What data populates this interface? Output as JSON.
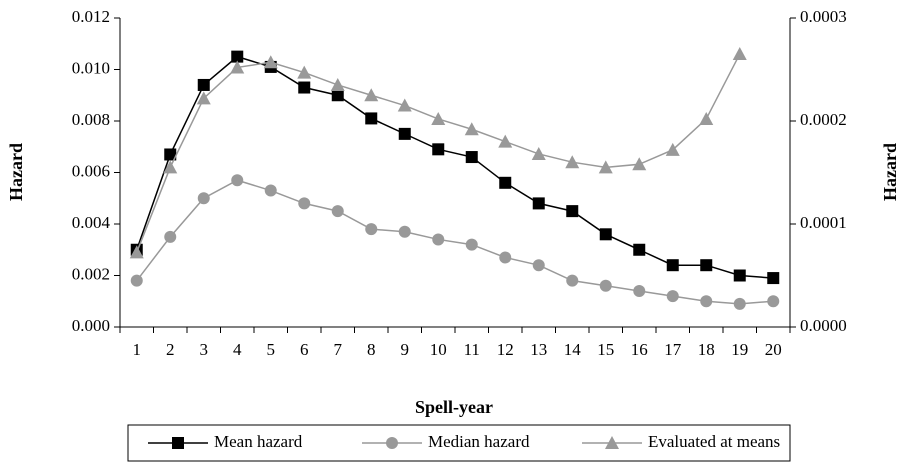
{
  "chart_data": {
    "type": "line",
    "x_label": "Spell-year",
    "y_label": "Hazard",
    "y2_label": "Hazard",
    "categories": [
      "1",
      "2",
      "3",
      "4",
      "5",
      "6",
      "7",
      "8",
      "9",
      "10",
      "11",
      "12",
      "13",
      "14",
      "15",
      "16",
      "17",
      "18",
      "19",
      "20"
    ],
    "ylim": [
      0,
      0.012
    ],
    "yticks": [
      {
        "value": 0,
        "label": "0.000"
      },
      {
        "value": 0.002,
        "label": "0.002"
      },
      {
        "value": 0.004,
        "label": "0.004"
      },
      {
        "value": 0.006,
        "label": "0.006"
      },
      {
        "value": 0.008,
        "label": "0.008"
      },
      {
        "value": 0.01,
        "label": "0.010"
      },
      {
        "value": 0.012,
        "label": "0.012"
      }
    ],
    "y2lim": [
      0,
      0.0003
    ],
    "y2ticks": [
      {
        "value": 0,
        "label": "0.0000"
      },
      {
        "value": 0.0001,
        "label": "0.0001"
      },
      {
        "value": 0.0002,
        "label": "0.0002"
      },
      {
        "value": 0.0003,
        "label": "0.0003"
      }
    ],
    "legend": "bottom",
    "series": [
      {
        "name": "Mean hazard",
        "color": "#000000",
        "marker": "square",
        "values": [
          0.003,
          0.0067,
          0.0094,
          0.0105,
          0.0101,
          0.0093,
          0.009,
          0.0081,
          0.0075,
          0.0069,
          0.0066,
          0.0056,
          0.0048,
          0.0045,
          0.0036,
          0.003,
          0.0024,
          0.0024,
          0.002,
          0.0019
        ]
      },
      {
        "name": "Median hazard",
        "color": "#999999",
        "marker": "circle",
        "values": [
          0.0018,
          0.0035,
          0.005,
          0.0057,
          0.0053,
          0.0048,
          0.0045,
          0.0038,
          0.0037,
          0.0034,
          0.0032,
          0.0027,
          0.0024,
          0.0018,
          0.0016,
          0.0014,
          0.0012,
          0.001,
          0.0009,
          0.001
        ]
      },
      {
        "name": "Evaluated at means",
        "color": "#999999",
        "marker": "triangle",
        "axis": "y2",
        "values": [
          7.25e-05,
          0.000155,
          0.000222,
          0.000252,
          0.000257,
          0.000247,
          0.000235,
          0.000225,
          0.000215,
          0.000202,
          0.000192,
          0.00018,
          0.000168,
          0.00016,
          0.000155,
          0.000158,
          0.000172,
          0.000202,
          0.000265,
          null
        ]
      }
    ]
  }
}
